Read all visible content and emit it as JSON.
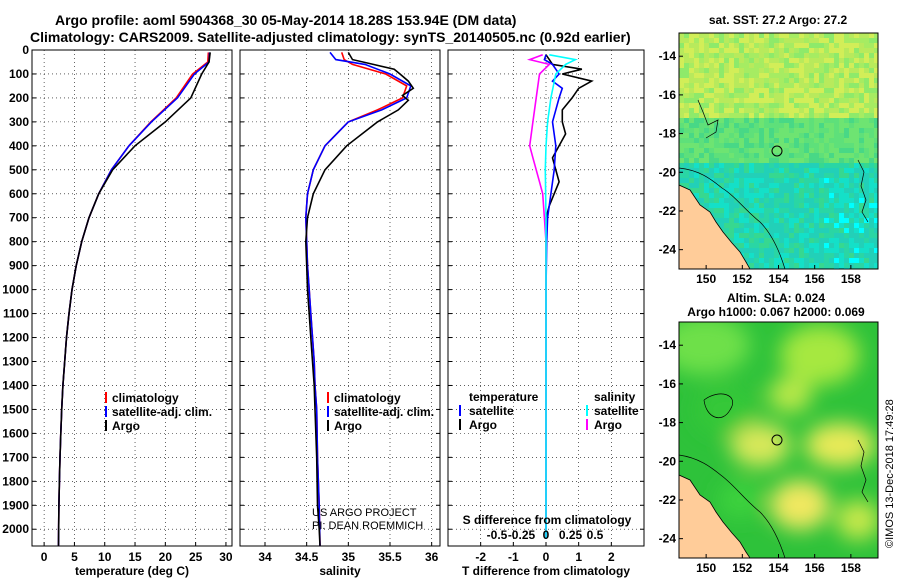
{
  "header": {
    "line1": "Argo profile: aoml 5904368_30 05-May-2014 18.28S 153.94E (DM data)",
    "line2": "Climatology: CARS2009. Satellite-adjusted climatology: synTS_20140505.nc (0.92d earlier)"
  },
  "colors": {
    "climatology": "#ff0000",
    "satellite": "#0000ff",
    "argo": "#000000",
    "salinity_satellite": "#00ffff",
    "salinity_argo": "#ff00ff",
    "land": "#ffcc99"
  },
  "chart_data": [
    {
      "id": "temperature",
      "type": "line",
      "xlabel": "temperature (deg C)",
      "ylabel": "",
      "xlim": [
        -2,
        31
      ],
      "ylim": [
        2070,
        0
      ],
      "xticks": [
        "0",
        "5",
        "10",
        "15",
        "20",
        "25",
        "30"
      ],
      "yticks": [
        "0",
        "100",
        "200",
        "300",
        "400",
        "500",
        "600",
        "700",
        "800",
        "900",
        "1000",
        "1100",
        "1200",
        "1300",
        "1400",
        "1500",
        "1600",
        "1700",
        "1800",
        "1900",
        "2000"
      ],
      "series": [
        {
          "name": "climatology",
          "color": "#ff0000",
          "x": [
            27.1,
            27.0,
            24.5,
            21.8,
            17.6,
            14.0,
            11.1,
            9.0,
            7.4,
            6.2,
            5.3,
            4.6,
            4.1,
            3.7,
            3.4,
            3.1,
            2.9,
            2.75,
            2.62,
            2.52,
            2.44,
            2.38
          ],
          "y": [
            10,
            50,
            100,
            200,
            300,
            400,
            500,
            600,
            700,
            800,
            900,
            1000,
            1100,
            1200,
            1300,
            1400,
            1500,
            1600,
            1700,
            1800,
            1900,
            2070
          ]
        },
        {
          "name": "satellite-adj. clim.",
          "color": "#0000ff",
          "x": [
            27.3,
            27.2,
            24.8,
            22.0,
            17.7,
            14.0,
            11.1,
            9.0,
            7.4,
            6.2,
            5.3,
            4.6,
            4.1,
            3.7,
            3.4,
            3.1,
            2.9,
            2.75,
            2.62,
            2.52,
            2.44,
            2.38
          ],
          "y": [
            10,
            50,
            100,
            200,
            300,
            400,
            500,
            600,
            700,
            800,
            900,
            1000,
            1100,
            1200,
            1300,
            1400,
            1500,
            1600,
            1700,
            1800,
            1900,
            2070
          ]
        },
        {
          "name": "Argo",
          "color": "#000000",
          "x": [
            27.4,
            27.2,
            26.0,
            24.2,
            20.0,
            15.0,
            11.3,
            9.0,
            7.4,
            6.2,
            5.3,
            4.6,
            4.1,
            3.7,
            3.4,
            3.1,
            2.9,
            2.75,
            2.62,
            2.52,
            2.44,
            2.38
          ],
          "y": [
            10,
            50,
            100,
            200,
            300,
            400,
            500,
            600,
            700,
            800,
            900,
            1000,
            1100,
            1200,
            1300,
            1400,
            1500,
            1600,
            1700,
            1800,
            1900,
            2070
          ]
        }
      ],
      "legend": [
        "climatology",
        "satellite-adj. clim.",
        "Argo"
      ],
      "legend_position": "lower-center",
      "grid": true
    },
    {
      "id": "salinity",
      "type": "line",
      "xlabel": "salinity",
      "xlim": [
        33.7,
        36.1
      ],
      "ylim": [
        2070,
        0
      ],
      "xticks": [
        "34",
        "34.5",
        "35",
        "35.5",
        "36"
      ],
      "series": [
        {
          "name": "climatology",
          "color": "#ff0000",
          "x": [
            34.92,
            34.95,
            35.05,
            35.45,
            35.7,
            35.65,
            35.35,
            35.0,
            34.72,
            34.58,
            34.51,
            34.49,
            34.5,
            34.51,
            34.53,
            34.55,
            34.57,
            34.59,
            34.6,
            34.62,
            34.63,
            34.65,
            34.66
          ],
          "y": [
            10,
            40,
            60,
            100,
            150,
            200,
            250,
            300,
            400,
            500,
            600,
            700,
            800,
            900,
            1000,
            1100,
            1200,
            1300,
            1400,
            1500,
            1700,
            1900,
            2070
          ]
        },
        {
          "name": "satellite-adj. clim.",
          "color": "#0000ff",
          "x": [
            34.78,
            34.85,
            35.2,
            35.5,
            35.75,
            35.7,
            35.4,
            35.0,
            34.72,
            34.58,
            34.51,
            34.49,
            34.5,
            34.51,
            34.53,
            34.55,
            34.57,
            34.59,
            34.6,
            34.62,
            34.63,
            34.65,
            34.66
          ],
          "y": [
            10,
            40,
            60,
            100,
            150,
            200,
            250,
            300,
            400,
            500,
            600,
            700,
            800,
            900,
            1000,
            1100,
            1200,
            1300,
            1400,
            1500,
            1700,
            1900,
            2070
          ]
        },
        {
          "name": "Argo",
          "color": "#000000",
          "x": [
            35.0,
            35.05,
            35.3,
            35.55,
            35.62,
            35.72,
            35.78,
            35.65,
            35.72,
            35.6,
            35.35,
            34.98,
            34.72,
            34.58,
            34.51,
            34.49,
            34.5,
            34.51,
            34.53,
            34.55,
            34.57,
            34.59,
            34.6,
            34.62,
            34.63,
            34.65,
            34.66
          ],
          "y": [
            10,
            40,
            60,
            80,
            100,
            130,
            160,
            190,
            210,
            250,
            300,
            400,
            500,
            600,
            700,
            800,
            900,
            1000,
            1100,
            1200,
            1300,
            1400,
            1500,
            1700,
            1900,
            2000,
            2070
          ]
        }
      ],
      "legend": [
        "climatology",
        "satellite-adj. clim.",
        "Argo"
      ],
      "legend_position": "lower-center",
      "grid": true,
      "annotation": [
        "US ARGO PROJECT",
        "PI: DEAN ROEMMICH"
      ]
    },
    {
      "id": "difference",
      "type": "line",
      "xlabel": "T difference from climatology",
      "xlabel2": "S difference from climatology",
      "xlim": [
        -3,
        3
      ],
      "ylim": [
        2070,
        0
      ],
      "xticks": [
        "-2",
        "-1",
        "0",
        "1",
        "2"
      ],
      "xticks_s": [
        "-0.5",
        "-0.25",
        "0",
        "0.25",
        "0.5"
      ],
      "xticks_s_values": [
        -1.5,
        -0.75,
        0,
        0.75,
        1.5
      ],
      "series": [
        {
          "name": "temperature Argo",
          "color": "#000000",
          "x": [
            0,
            0.1,
            0.2,
            1.1,
            0.5,
            1.4,
            1.0,
            0.8,
            0.5,
            0.5,
            0.6,
            0.2,
            0.4,
            0.1,
            0,
            0,
            0,
            0,
            0,
            0,
            0,
            0
          ],
          "y": [
            20,
            40,
            60,
            80,
            100,
            130,
            160,
            200,
            250,
            300,
            350,
            450,
            550,
            650,
            700,
            800,
            1000,
            1200,
            1400,
            1600,
            1800,
            2040
          ]
        },
        {
          "name": "temperature satellite",
          "color": "#0000ff",
          "x": [
            0,
            -0.05,
            0.2,
            0.3,
            0.4,
            0.2,
            0.5,
            0.4,
            0.3,
            0.2,
            0.3,
            0.25,
            0.15,
            0.05,
            0.02,
            0,
            0,
            0,
            0,
            0
          ],
          "y": [
            20,
            40,
            60,
            80,
            100,
            130,
            160,
            200,
            250,
            300,
            400,
            500,
            600,
            700,
            800,
            1000,
            1200,
            1500,
            1800,
            2040
          ]
        },
        {
          "name": "salinity Argo",
          "color": "#ff00ff",
          "x": [
            -0.1,
            -0.5,
            0.1,
            -0.2,
            -0.3,
            -0.4,
            -0.5,
            -0.4,
            -0.3,
            -0.2,
            -0.1,
            -0.05,
            0,
            0,
            0,
            0,
            0
          ],
          "y": [
            20,
            40,
            60,
            100,
            200,
            300,
            400,
            450,
            500,
            550,
            600,
            700,
            800,
            1000,
            1400,
            1800,
            2040
          ]
        },
        {
          "name": "salinity satellite",
          "color": "#00ffff",
          "x": [
            0.1,
            0.9,
            0.6,
            0.3,
            0.15,
            0.05,
            0,
            -0.02,
            0,
            0,
            0,
            0
          ],
          "y": [
            20,
            40,
            60,
            100,
            200,
            300,
            400,
            500,
            700,
            1000,
            1500,
            2040
          ]
        }
      ],
      "legend_temperature_title": "temperature",
      "legend_salinity_title": "salinity",
      "legend_temperature": [
        "satellite",
        "Argo"
      ],
      "legend_salinity": [
        "satellite",
        "Argo"
      ],
      "grid": true
    },
    {
      "id": "sst_map",
      "type": "heatmap",
      "title": "sat. SST: 27.2 Argo: 27.2",
      "xticks": [
        "150",
        "152",
        "154",
        "156",
        "158"
      ],
      "yticks": [
        "-14",
        "-16",
        "-18",
        "-20",
        "-22",
        "-24"
      ],
      "xlim": [
        148.5,
        159.5
      ],
      "ylim": [
        -25,
        -12.8
      ],
      "marker": [
        153.94,
        -18.28
      ]
    },
    {
      "id": "sla_map",
      "type": "heatmap",
      "title": "Altim. SLA: 0.024",
      "subtitle": "Argo h1000: 0.067 h2000: 0.069",
      "xticks": [
        "150",
        "152",
        "154",
        "156",
        "158"
      ],
      "yticks": [
        "-14",
        "-16",
        "-18",
        "-20",
        "-22",
        "-24"
      ],
      "xlim": [
        148.5,
        159.5
      ],
      "ylim": [
        -25,
        -12.8
      ],
      "marker": [
        153.94,
        -18.28
      ]
    }
  ],
  "footer": {
    "credit": "©IMOS 13-Dec-2018 17:49:28"
  }
}
